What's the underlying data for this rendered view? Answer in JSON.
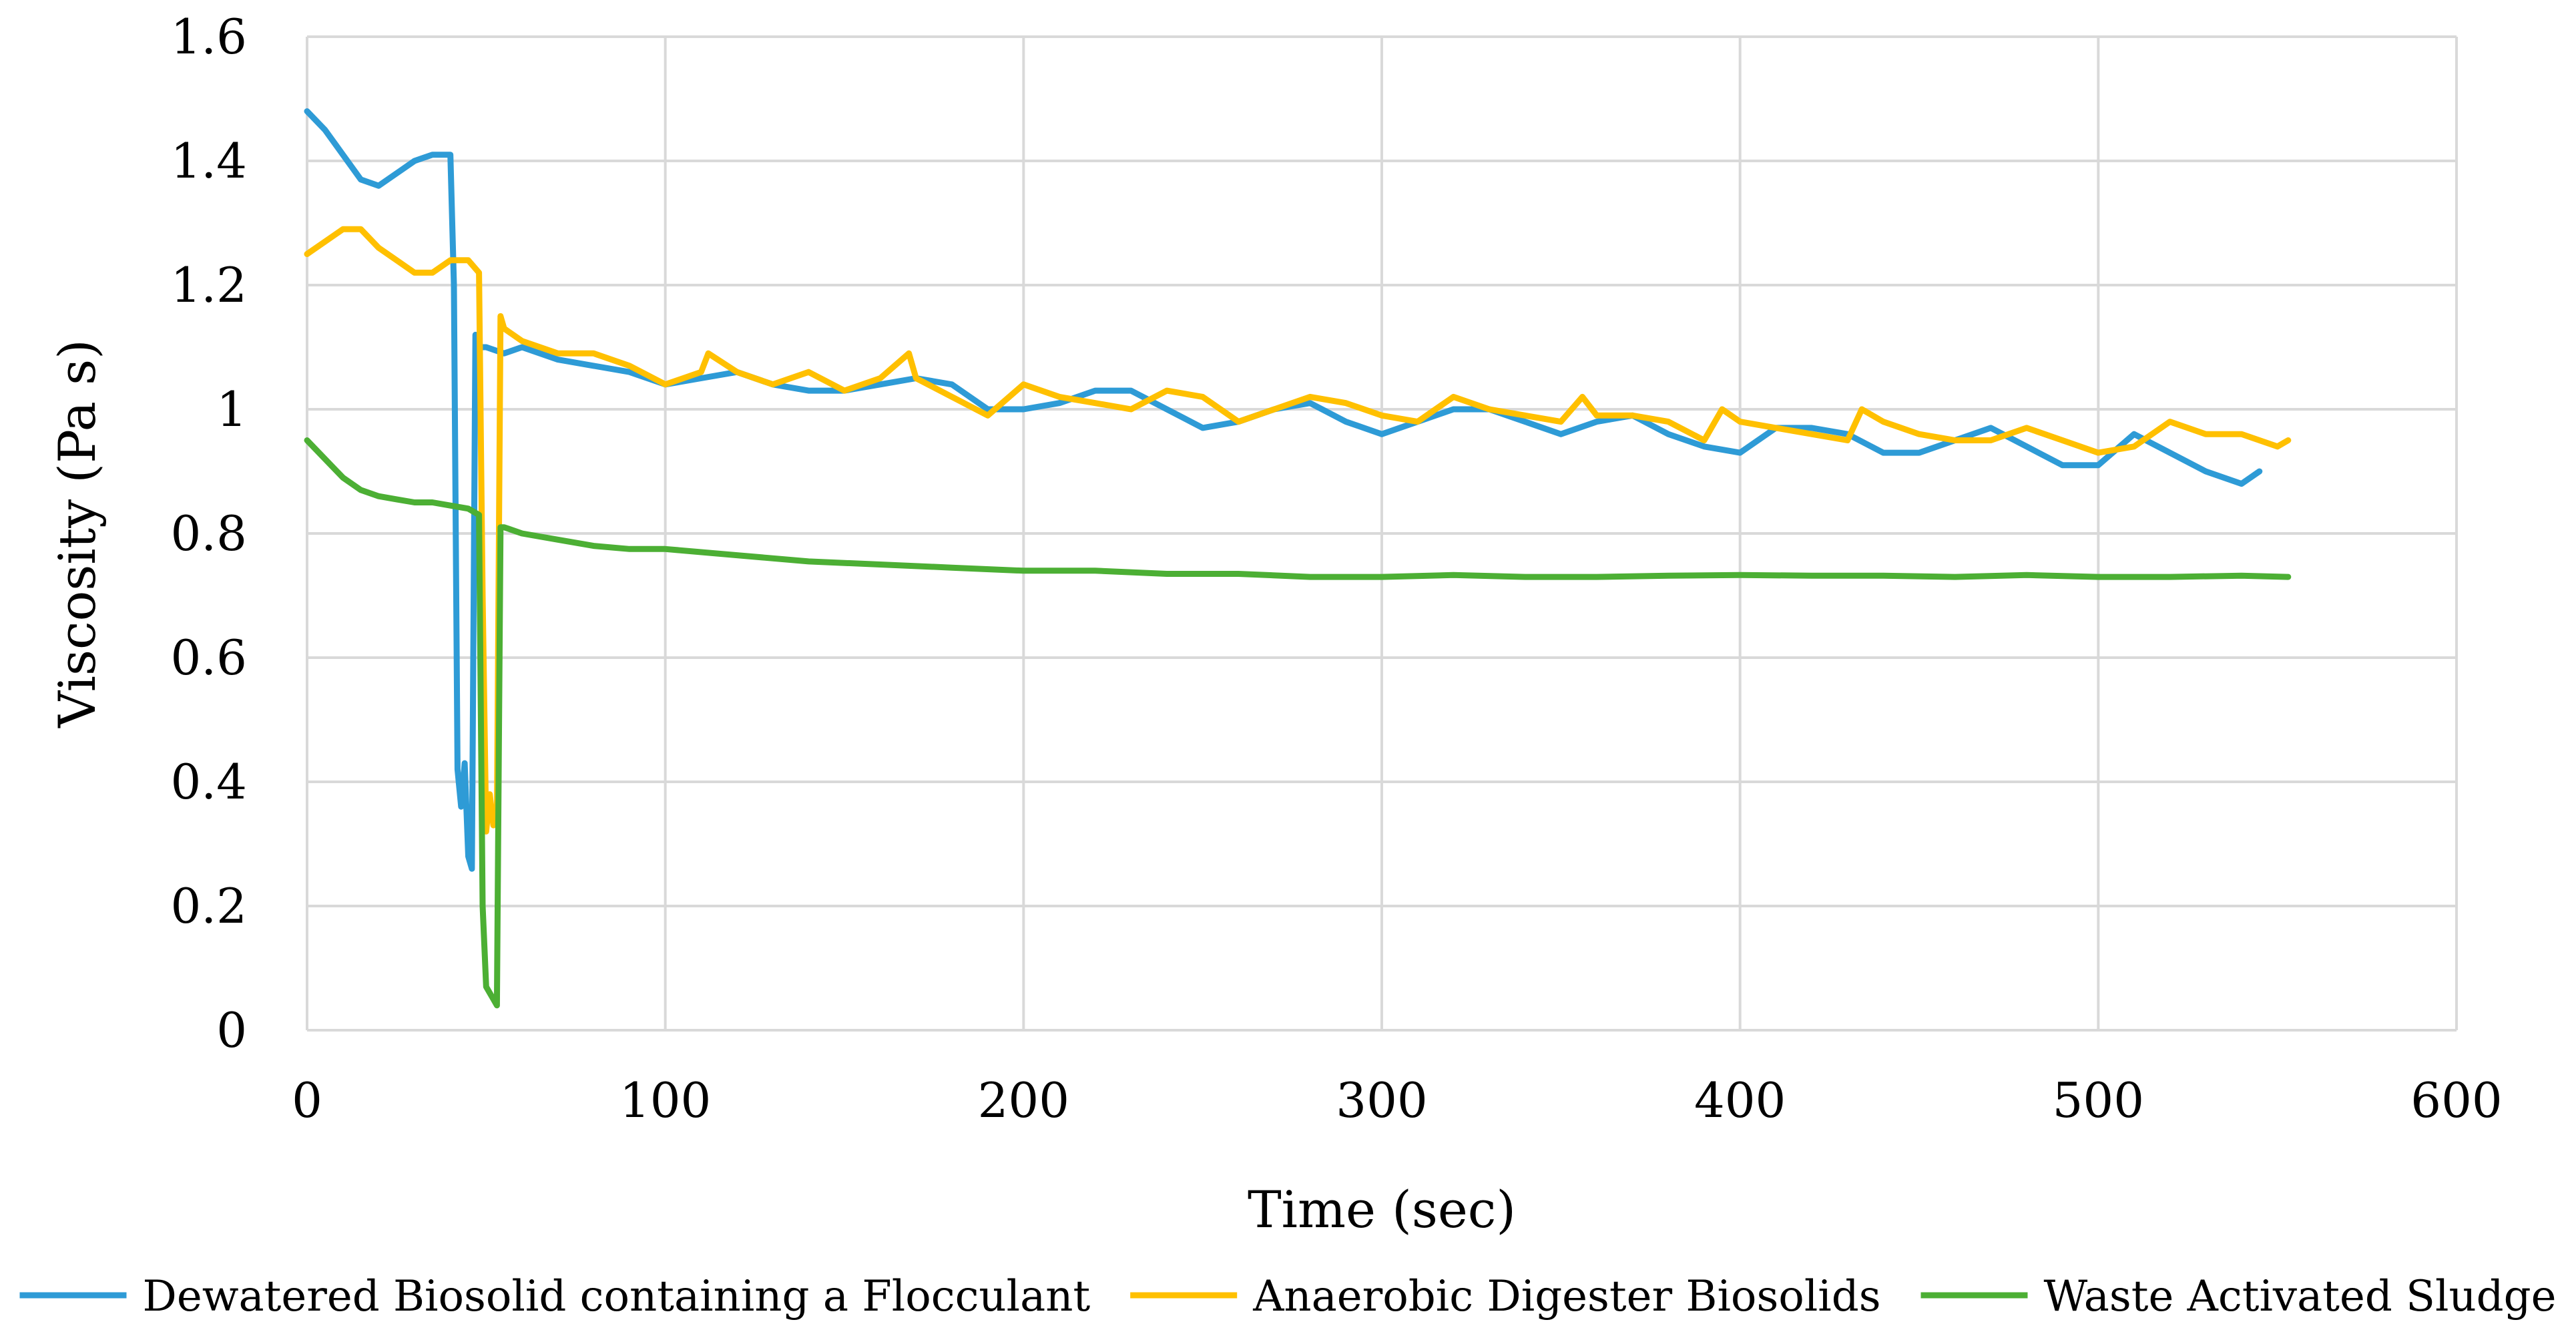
{
  "chart_data": {
    "type": "line",
    "title": "",
    "xlabel": "Time (sec)",
    "ylabel": "Viscosity (Pa s)",
    "xlim": [
      0,
      600
    ],
    "ylim": [
      0,
      1.6
    ],
    "xticks": [
      0,
      100,
      200,
      300,
      400,
      500,
      600
    ],
    "yticks": [
      0,
      0.2,
      0.4,
      0.6,
      0.8,
      1,
      1.2,
      1.4,
      1.6
    ],
    "xtick_labels": [
      "0",
      "100",
      "200",
      "300",
      "400",
      "500",
      "600"
    ],
    "ytick_labels": [
      "0",
      "0.2",
      "0.4",
      "0.6",
      "0.8",
      "1",
      "1.2",
      "1.4",
      "1.6"
    ],
    "grid": true,
    "legend_position": "bottom",
    "series": [
      {
        "name": "Dewatered Biosolid containing a Flocculant",
        "color": "#2e9bd6",
        "x": [
          0,
          5,
          10,
          15,
          20,
          25,
          30,
          35,
          40,
          41,
          42,
          43,
          44,
          45,
          46,
          47,
          48,
          50,
          55,
          60,
          70,
          80,
          90,
          100,
          110,
          120,
          130,
          140,
          150,
          160,
          170,
          180,
          190,
          200,
          210,
          220,
          230,
          240,
          250,
          260,
          270,
          280,
          290,
          300,
          310,
          320,
          330,
          340,
          350,
          360,
          370,
          380,
          390,
          400,
          410,
          420,
          430,
          440,
          450,
          460,
          470,
          480,
          490,
          500,
          510,
          520,
          530,
          540,
          545
        ],
        "y": [
          1.48,
          1.45,
          1.41,
          1.37,
          1.36,
          1.38,
          1.4,
          1.41,
          1.41,
          1.2,
          0.42,
          0.36,
          0.43,
          0.28,
          0.26,
          1.12,
          1.1,
          1.1,
          1.09,
          1.1,
          1.08,
          1.07,
          1.06,
          1.04,
          1.05,
          1.06,
          1.04,
          1.03,
          1.03,
          1.04,
          1.05,
          1.04,
          1.0,
          1.0,
          1.01,
          1.03,
          1.03,
          1.0,
          0.97,
          0.98,
          1.0,
          1.01,
          0.98,
          0.96,
          0.98,
          1.0,
          1.0,
          0.98,
          0.96,
          0.98,
          0.99,
          0.96,
          0.94,
          0.93,
          0.97,
          0.97,
          0.96,
          0.93,
          0.93,
          0.95,
          0.97,
          0.94,
          0.91,
          0.91,
          0.96,
          0.93,
          0.9,
          0.88,
          0.9
        ]
      },
      {
        "name": "Anaerobic Digester Biosolids",
        "color": "#ffc000",
        "x": [
          0,
          5,
          10,
          15,
          20,
          25,
          30,
          35,
          40,
          45,
          48,
          49,
          50,
          51,
          52,
          53,
          54,
          55,
          60,
          70,
          80,
          90,
          100,
          110,
          112,
          120,
          130,
          140,
          150,
          160,
          168,
          170,
          180,
          190,
          200,
          210,
          220,
          230,
          240,
          250,
          260,
          270,
          280,
          290,
          300,
          310,
          320,
          330,
          340,
          350,
          356,
          360,
          370,
          380,
          390,
          395,
          400,
          410,
          420,
          430,
          434,
          440,
          450,
          460,
          470,
          480,
          490,
          500,
          510,
          520,
          530,
          540,
          550,
          553
        ],
        "y": [
          1.25,
          1.27,
          1.29,
          1.29,
          1.26,
          1.24,
          1.22,
          1.22,
          1.24,
          1.24,
          1.22,
          0.7,
          0.32,
          0.38,
          0.33,
          0.34,
          1.15,
          1.13,
          1.11,
          1.09,
          1.09,
          1.07,
          1.04,
          1.06,
          1.09,
          1.06,
          1.04,
          1.06,
          1.03,
          1.05,
          1.09,
          1.05,
          1.02,
          0.99,
          1.04,
          1.02,
          1.01,
          1.0,
          1.03,
          1.02,
          0.98,
          1.0,
          1.02,
          1.01,
          0.99,
          0.98,
          1.02,
          1.0,
          0.99,
          0.98,
          1.02,
          0.99,
          0.99,
          0.98,
          0.95,
          1.0,
          0.98,
          0.97,
          0.96,
          0.95,
          1.0,
          0.98,
          0.96,
          0.95,
          0.95,
          0.97,
          0.95,
          0.93,
          0.94,
          0.98,
          0.96,
          0.96,
          0.94,
          0.95
        ]
      },
      {
        "name": "Waste Activated Sludge",
        "color": "#4caf34",
        "x": [
          0,
          5,
          10,
          15,
          20,
          25,
          30,
          35,
          40,
          45,
          48,
          49,
          50,
          51,
          52,
          53,
          54,
          55,
          60,
          70,
          80,
          90,
          100,
          120,
          140,
          160,
          180,
          200,
          220,
          240,
          260,
          280,
          300,
          320,
          340,
          360,
          380,
          400,
          420,
          440,
          460,
          480,
          500,
          520,
          540,
          553
        ],
        "y": [
          0.95,
          0.92,
          0.89,
          0.87,
          0.86,
          0.855,
          0.85,
          0.85,
          0.845,
          0.84,
          0.83,
          0.2,
          0.07,
          0.06,
          0.05,
          0.04,
          0.81,
          0.81,
          0.8,
          0.79,
          0.78,
          0.775,
          0.775,
          0.765,
          0.755,
          0.75,
          0.745,
          0.74,
          0.74,
          0.735,
          0.735,
          0.73,
          0.73,
          0.733,
          0.73,
          0.73,
          0.732,
          0.733,
          0.732,
          0.732,
          0.73,
          0.733,
          0.73,
          0.73,
          0.732,
          0.73
        ]
      }
    ]
  }
}
